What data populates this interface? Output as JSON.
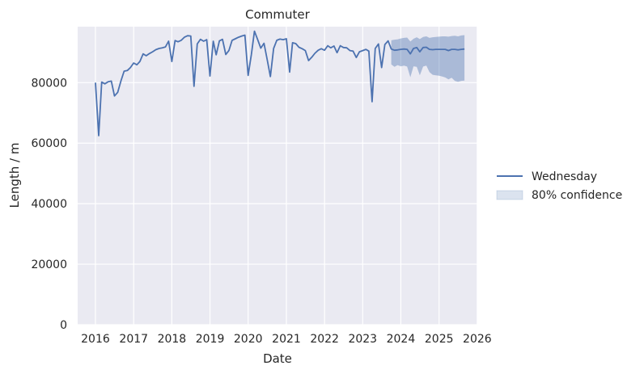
{
  "chart_data": {
    "type": "line",
    "title": "Commuter",
    "xlabel": "Date",
    "ylabel": "Length / m",
    "x_range": [
      "2015-07-15",
      "2026-01-02"
    ],
    "ylim": [
      0,
      98500
    ],
    "x_ticks": [
      "2016",
      "2017",
      "2018",
      "2019",
      "2020",
      "2021",
      "2022",
      "2023",
      "2024",
      "2025",
      "2026"
    ],
    "y_ticks": [
      0,
      20000,
      40000,
      60000,
      80000
    ],
    "grid": true,
    "legend_position": "right",
    "colors": {
      "line": "#4c72b0",
      "band": "#4c72b0",
      "background": "#eaeaf2",
      "grid": "#ffffff"
    },
    "series": [
      {
        "name": "Wednesday",
        "kind": "line",
        "points": [
          [
            "2016-01-01",
            80000
          ],
          [
            "2016-02-01",
            62500
          ],
          [
            "2016-03-01",
            80200
          ],
          [
            "2016-04-01",
            79600
          ],
          [
            "2016-05-01",
            80300
          ],
          [
            "2016-06-01",
            80500
          ],
          [
            "2016-07-01",
            75600
          ],
          [
            "2016-08-01",
            76800
          ],
          [
            "2016-09-01",
            80600
          ],
          [
            "2016-10-01",
            83800
          ],
          [
            "2016-11-01",
            84000
          ],
          [
            "2016-12-01",
            85000
          ],
          [
            "2017-01-01",
            86500
          ],
          [
            "2017-02-01",
            85900
          ],
          [
            "2017-03-01",
            87000
          ],
          [
            "2017-04-01",
            89500
          ],
          [
            "2017-05-01",
            88900
          ],
          [
            "2017-06-01",
            89600
          ],
          [
            "2017-07-01",
            90200
          ],
          [
            "2017-08-01",
            90900
          ],
          [
            "2017-09-01",
            91300
          ],
          [
            "2017-10-01",
            91500
          ],
          [
            "2017-11-01",
            91800
          ],
          [
            "2017-12-01",
            93700
          ],
          [
            "2018-01-01",
            87000
          ],
          [
            "2018-02-01",
            93900
          ],
          [
            "2018-03-01",
            93500
          ],
          [
            "2018-04-01",
            94000
          ],
          [
            "2018-05-01",
            95000
          ],
          [
            "2018-06-01",
            95500
          ],
          [
            "2018-07-01",
            95400
          ],
          [
            "2018-08-01",
            78800
          ],
          [
            "2018-09-01",
            92800
          ],
          [
            "2018-10-01",
            94300
          ],
          [
            "2018-11-01",
            93700
          ],
          [
            "2018-12-01",
            94200
          ],
          [
            "2019-01-01",
            82200
          ],
          [
            "2019-02-01",
            93700
          ],
          [
            "2019-03-01",
            89200
          ],
          [
            "2019-04-01",
            93800
          ],
          [
            "2019-05-01",
            94300
          ],
          [
            "2019-06-01",
            89300
          ],
          [
            "2019-07-01",
            90600
          ],
          [
            "2019-08-01",
            94000
          ],
          [
            "2019-09-01",
            94500
          ],
          [
            "2019-10-01",
            95000
          ],
          [
            "2019-11-01",
            95400
          ],
          [
            "2019-12-01",
            95700
          ],
          [
            "2020-01-01",
            82400
          ],
          [
            "2020-02-01",
            89300
          ],
          [
            "2020-03-01",
            97000
          ],
          [
            "2020-04-01",
            94200
          ],
          [
            "2020-05-01",
            91400
          ],
          [
            "2020-06-01",
            93000
          ],
          [
            "2020-07-01",
            87700
          ],
          [
            "2020-08-01",
            82000
          ],
          [
            "2020-09-01",
            91300
          ],
          [
            "2020-10-01",
            94000
          ],
          [
            "2020-11-01",
            94400
          ],
          [
            "2020-12-01",
            94200
          ],
          [
            "2021-01-01",
            94500
          ],
          [
            "2021-02-01",
            83500
          ],
          [
            "2021-03-01",
            93200
          ],
          [
            "2021-04-01",
            92900
          ],
          [
            "2021-05-01",
            91700
          ],
          [
            "2021-06-01",
            91200
          ],
          [
            "2021-07-01",
            90600
          ],
          [
            "2021-08-01",
            87300
          ],
          [
            "2021-09-01",
            88400
          ],
          [
            "2021-10-01",
            89700
          ],
          [
            "2021-11-01",
            90700
          ],
          [
            "2021-12-01",
            91200
          ],
          [
            "2022-01-01",
            90700
          ],
          [
            "2022-02-01",
            92200
          ],
          [
            "2022-03-01",
            91500
          ],
          [
            "2022-04-01",
            92100
          ],
          [
            "2022-05-01",
            89900
          ],
          [
            "2022-06-01",
            92200
          ],
          [
            "2022-07-01",
            91600
          ],
          [
            "2022-08-01",
            91500
          ],
          [
            "2022-09-01",
            90600
          ],
          [
            "2022-10-01",
            90400
          ],
          [
            "2022-11-01",
            88300
          ],
          [
            "2022-12-01",
            90200
          ],
          [
            "2023-01-01",
            90600
          ],
          [
            "2023-02-01",
            91000
          ],
          [
            "2023-03-01",
            90400
          ],
          [
            "2023-04-01",
            73700
          ],
          [
            "2023-05-01",
            91300
          ],
          [
            "2023-06-01",
            92800
          ],
          [
            "2023-07-01",
            85000
          ],
          [
            "2023-08-01",
            92600
          ],
          [
            "2023-09-01",
            93800
          ],
          [
            "2023-10-01",
            91100
          ],
          [
            "2023-11-01",
            90700
          ],
          [
            "2023-12-01",
            90800
          ],
          [
            "2024-01-01",
            91000
          ],
          [
            "2024-02-01",
            91100
          ],
          [
            "2024-03-01",
            91000
          ],
          [
            "2024-04-01",
            89500
          ],
          [
            "2024-05-01",
            91300
          ],
          [
            "2024-06-01",
            91600
          ],
          [
            "2024-07-01",
            90200
          ],
          [
            "2024-08-01",
            91600
          ],
          [
            "2024-09-01",
            91700
          ],
          [
            "2024-10-01",
            91000
          ],
          [
            "2024-11-01",
            90900
          ],
          [
            "2024-12-01",
            91000
          ],
          [
            "2025-01-01",
            91000
          ],
          [
            "2025-02-01",
            91000
          ],
          [
            "2025-03-01",
            91000
          ],
          [
            "2025-04-01",
            90600
          ],
          [
            "2025-05-01",
            91000
          ],
          [
            "2025-06-01",
            91000
          ],
          [
            "2025-07-01",
            90800
          ],
          [
            "2025-08-01",
            91000
          ],
          [
            "2025-09-01",
            91100
          ]
        ]
      },
      {
        "name": "80% confidence",
        "kind": "band",
        "points": [
          [
            "2023-10-01",
            86000,
            94000
          ],
          [
            "2023-11-01",
            85200,
            94200
          ],
          [
            "2023-12-01",
            85800,
            94300
          ],
          [
            "2024-01-01",
            85400,
            94600
          ],
          [
            "2024-02-01",
            85600,
            94800
          ],
          [
            "2024-03-01",
            85300,
            94900
          ],
          [
            "2024-04-01",
            81800,
            93600
          ],
          [
            "2024-05-01",
            85400,
            94500
          ],
          [
            "2024-06-01",
            85200,
            95000
          ],
          [
            "2024-07-01",
            82400,
            94400
          ],
          [
            "2024-08-01",
            85300,
            95100
          ],
          [
            "2024-09-01",
            85600,
            95300
          ],
          [
            "2024-10-01",
            83500,
            94800
          ],
          [
            "2024-11-01",
            82600,
            95000
          ],
          [
            "2024-12-01",
            82400,
            95100
          ],
          [
            "2025-01-01",
            82300,
            95200
          ],
          [
            "2025-02-01",
            82000,
            95300
          ],
          [
            "2025-03-01",
            81700,
            95300
          ],
          [
            "2025-04-01",
            81100,
            95200
          ],
          [
            "2025-05-01",
            81600,
            95400
          ],
          [
            "2025-06-01",
            80600,
            95500
          ],
          [
            "2025-07-01",
            80300,
            95300
          ],
          [
            "2025-08-01",
            80600,
            95600
          ],
          [
            "2025-09-01",
            80700,
            95700
          ]
        ]
      }
    ]
  }
}
